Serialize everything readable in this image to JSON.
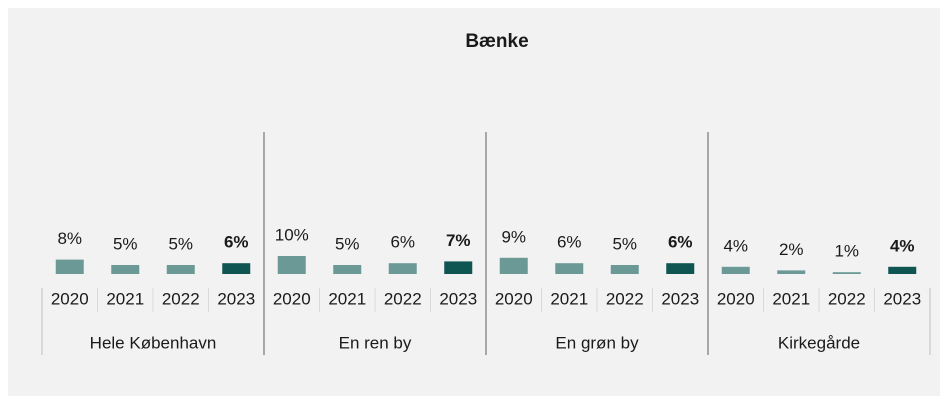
{
  "chart_data": {
    "type": "bar",
    "title": "Bænke",
    "category_colors": [
      "#6b9995",
      "#6b9995",
      "#6b9995",
      "#0f5552"
    ],
    "category_bold": [
      false,
      false,
      false,
      true
    ],
    "groups": [
      {
        "name": "Hele København",
        "categories": [
          "2020",
          "2021",
          "2022",
          "2023"
        ],
        "values": [
          8,
          5,
          5,
          6
        ],
        "value_labels": [
          "8%",
          "5%",
          "5%",
          "6%"
        ]
      },
      {
        "name": "En ren by",
        "categories": [
          "2020",
          "2021",
          "2022",
          "2023"
        ],
        "values": [
          10,
          5,
          6,
          7
        ],
        "value_labels": [
          "10%",
          "5%",
          "6%",
          "7%"
        ]
      },
      {
        "name": "En grøn by",
        "categories": [
          "2020",
          "2021",
          "2022",
          "2023"
        ],
        "values": [
          9,
          6,
          5,
          6
        ],
        "value_labels": [
          "9%",
          "6%",
          "5%",
          "6%"
        ]
      },
      {
        "name": "Kirkegårde",
        "categories": [
          "2020",
          "2021",
          "2022",
          "2023"
        ],
        "values": [
          4,
          2,
          1,
          4
        ],
        "value_labels": [
          "4%",
          "2%",
          "1%",
          "4%"
        ]
      }
    ]
  }
}
